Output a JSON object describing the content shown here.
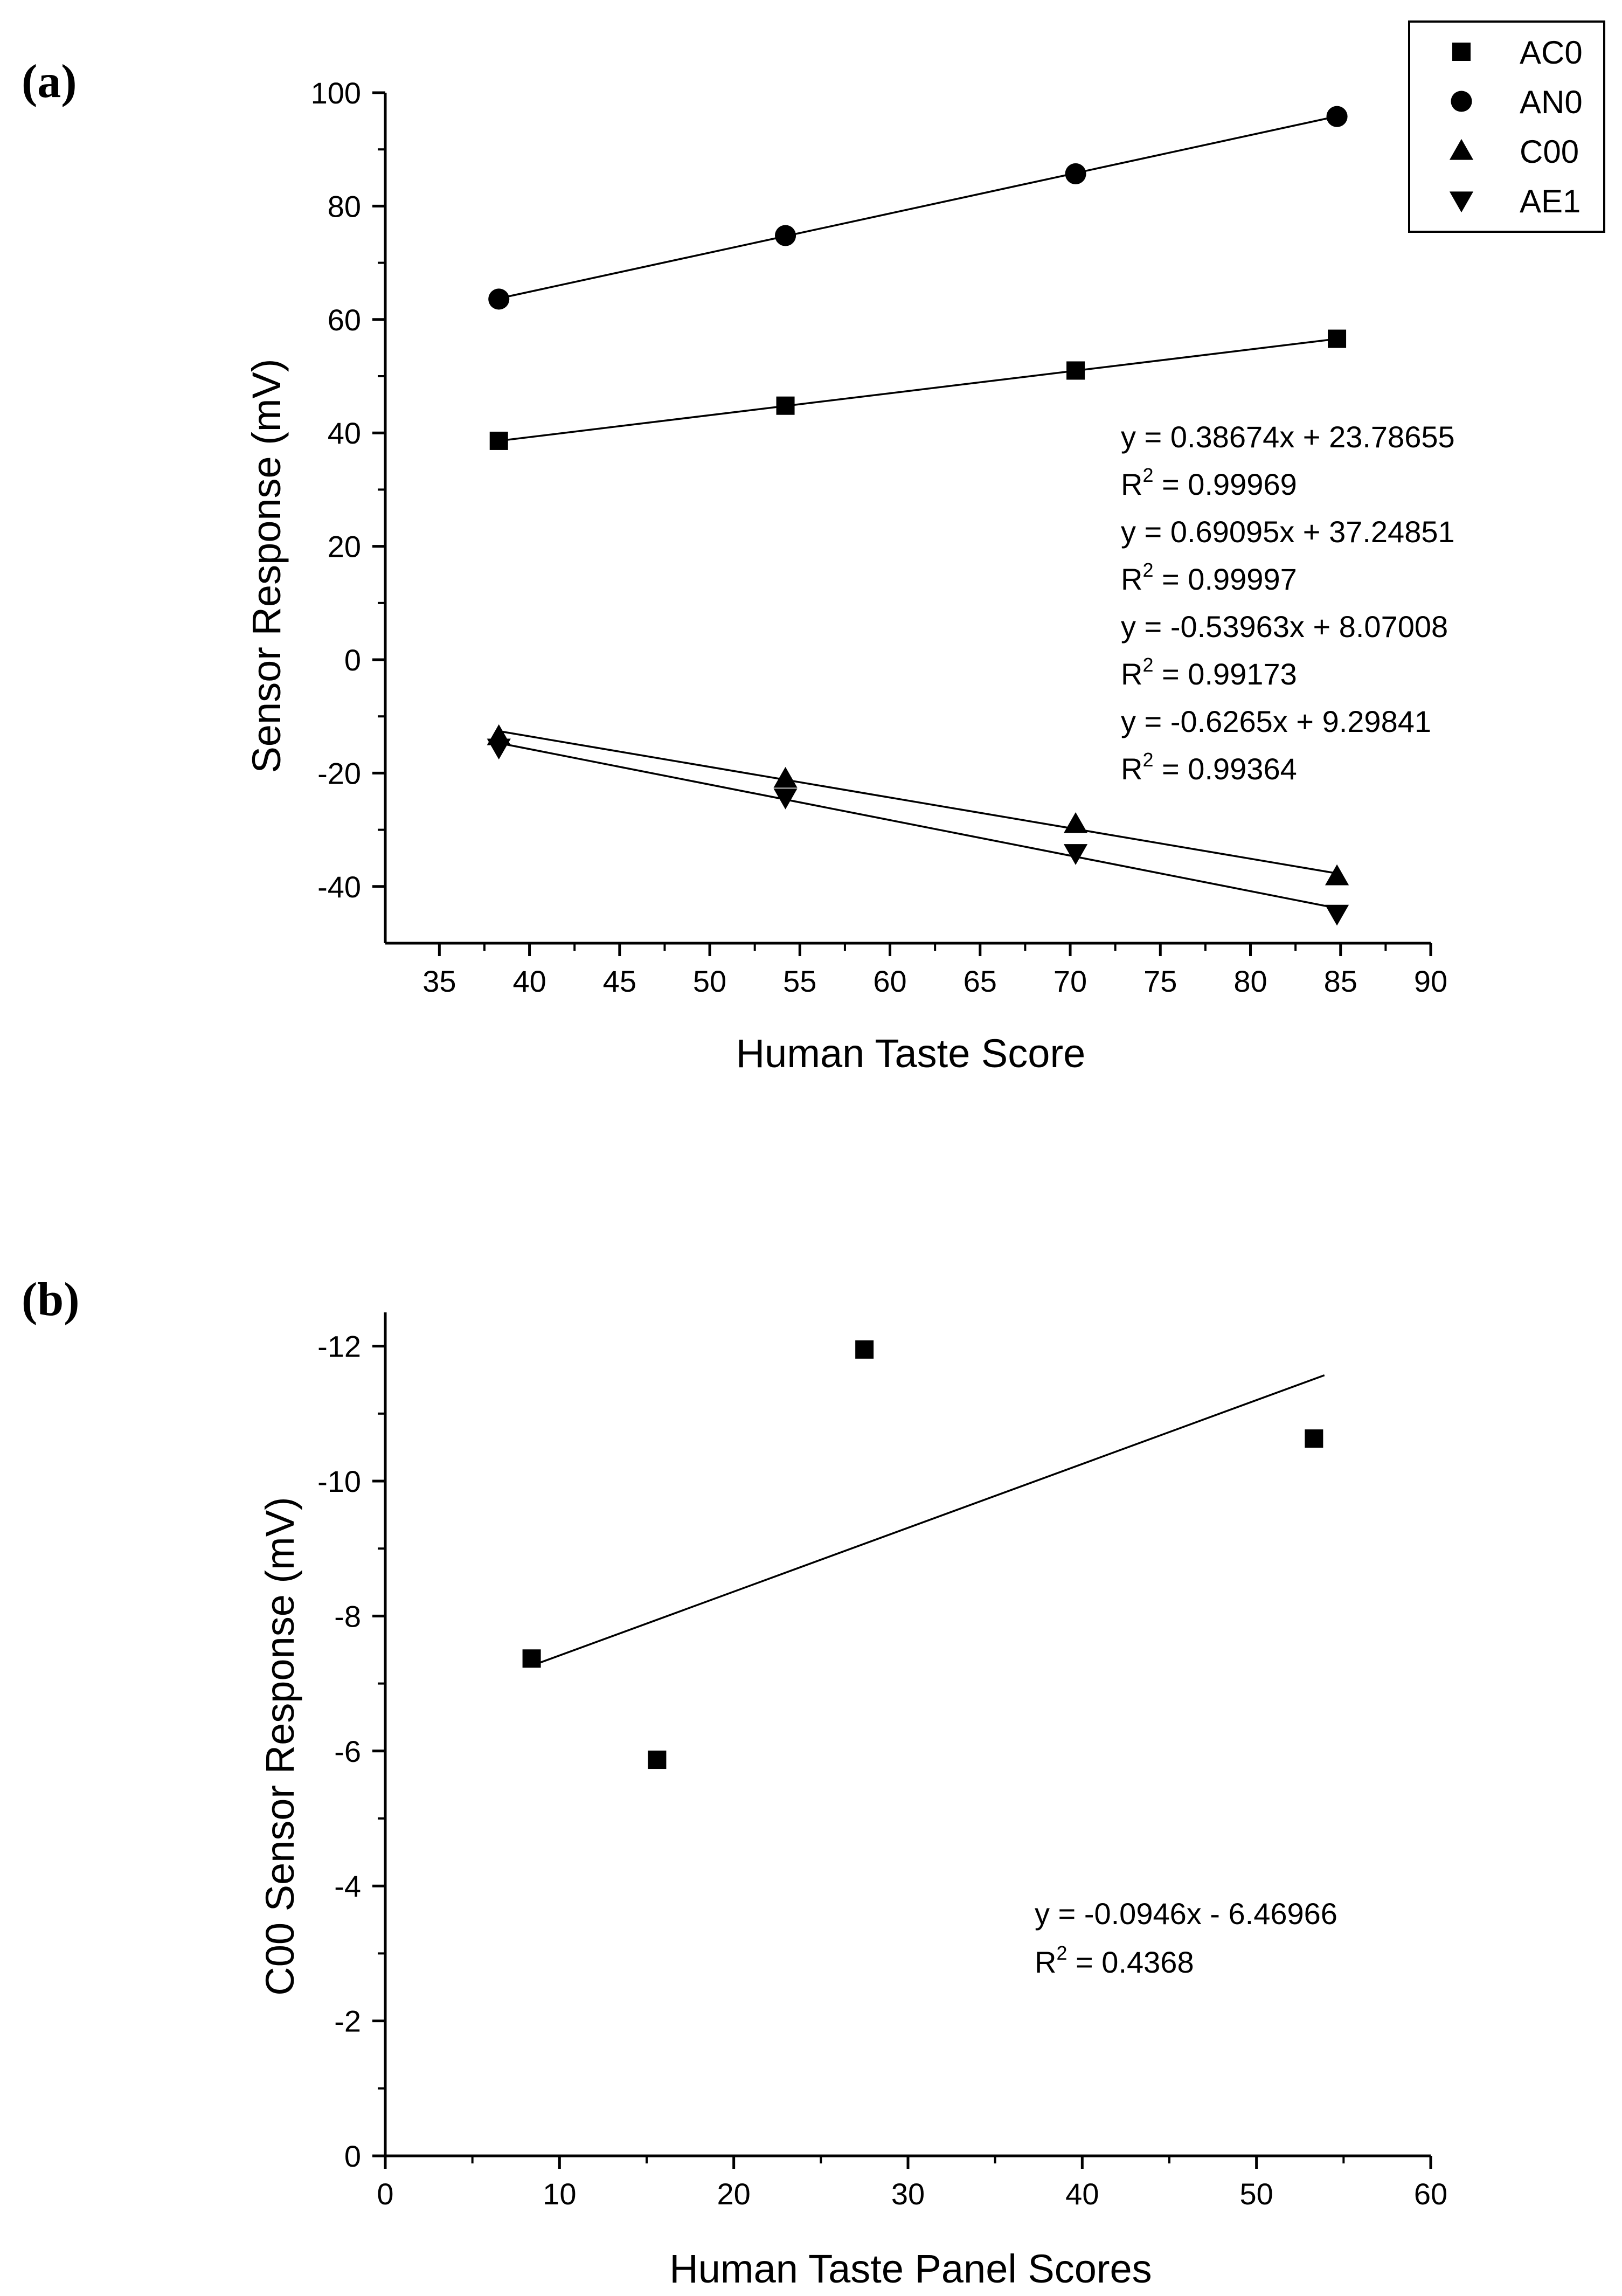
{
  "chart_data": [
    {
      "id": "a",
      "type": "scatter",
      "panel_label": "(a)",
      "title": "",
      "xlabel": "Human Taste Score",
      "ylabel": "Sensor Response (mV)",
      "xlim": [
        32,
        90
      ],
      "ylim": [
        -50,
        100
      ],
      "xticks": [
        35,
        40,
        45,
        50,
        55,
        60,
        65,
        70,
        75,
        80,
        85,
        90
      ],
      "yticks": [
        -40,
        -20,
        0,
        20,
        40,
        60,
        80,
        100
      ],
      "xtick_labels": [
        "35",
        "40",
        "45",
        "50",
        "55",
        "60",
        "65",
        "70",
        "75",
        "80",
        "85",
        "90"
      ],
      "ytick_labels": [
        "-40",
        "-20",
        "0",
        "20",
        "40",
        "60",
        "80",
        "100"
      ],
      "legend_position": "top-right",
      "series": [
        {
          "name": "AC0",
          "marker": "square",
          "x": [
            38.3,
            54.2,
            70.3,
            84.8
          ],
          "y": [
            38.6,
            44.8,
            51.0,
            56.6
          ],
          "fit": {
            "slope": 0.38674,
            "intercept": 23.78655
          }
        },
        {
          "name": "AN0",
          "marker": "circle",
          "x": [
            38.3,
            54.2,
            70.3,
            84.8
          ],
          "y": [
            63.6,
            74.8,
            85.7,
            95.8
          ],
          "fit": {
            "slope": 0.69095,
            "intercept": 37.24851
          }
        },
        {
          "name": "C00",
          "marker": "triangle-up",
          "x": [
            38.3,
            54.2,
            70.3,
            84.8
          ],
          "y": [
            -13.5,
            -21.0,
            -29.0,
            -38.2
          ],
          "fit": {
            "slope": -0.53963,
            "intercept": 8.07008
          }
        },
        {
          "name": "AE1",
          "marker": "triangle-down",
          "x": [
            38.3,
            54.2,
            70.3,
            84.8
          ],
          "y": [
            -15.5,
            -24.3,
            -34.1,
            -44.8
          ],
          "fit": {
            "slope": -0.6265,
            "intercept": 9.29841
          }
        }
      ],
      "annotations": [
        {
          "lines": [
            {
              "main": "y = 0.38674x + 23.78655",
              "sup": ""
            },
            {
              "main": "R",
              "sup": "2",
              "rest": " = 0.99969"
            },
            {
              "main": "y = 0.69095x + 37.24851",
              "sup": ""
            },
            {
              "main": "R",
              "sup": "2",
              "rest": " = 0.99997"
            },
            {
              "main": "y = -0.53963x + 8.07008",
              "sup": ""
            },
            {
              "main": "R",
              "sup": "2",
              "rest": " = 0.99173"
            },
            {
              "main": "y = -0.6265x + 9.29841",
              "sup": ""
            },
            {
              "main": "R",
              "sup": "2",
              "rest": " = 0.99364"
            }
          ]
        }
      ]
    },
    {
      "id": "b",
      "type": "scatter",
      "panel_label": "(b)",
      "title": "",
      "xlabel": "Human Taste Panel Scores",
      "ylabel": "C00 Sensor Response (mV)",
      "xlim": [
        0,
        60
      ],
      "ylim": [
        0,
        -12.5
      ],
      "y_inverted": true,
      "xticks": [
        0,
        10,
        20,
        30,
        40,
        50,
        60
      ],
      "yticks": [
        0,
        -2,
        -4,
        -6,
        -8,
        -10,
        -12
      ],
      "xtick_labels": [
        "0",
        "10",
        "20",
        "30",
        "40",
        "50",
        "60"
      ],
      "ytick_labels": [
        "0",
        "-2",
        "-4",
        "-6",
        "-8",
        "-10",
        "-12"
      ],
      "series": [
        {
          "name": "C00",
          "marker": "square",
          "x": [
            8.4,
            15.6,
            27.5,
            53.3
          ],
          "y": [
            -7.37,
            -5.87,
            -11.95,
            -10.63
          ],
          "fit": {
            "slope": -0.0946,
            "intercept": -6.46966,
            "x_range": [
              8.4,
              53.3
            ]
          }
        }
      ],
      "annotations": [
        {
          "lines": [
            {
              "main": "y = -0.0946x - 6.46966",
              "sup": ""
            },
            {
              "main": "R",
              "sup": "2",
              "rest": " = 0.4368"
            }
          ]
        }
      ]
    }
  ]
}
